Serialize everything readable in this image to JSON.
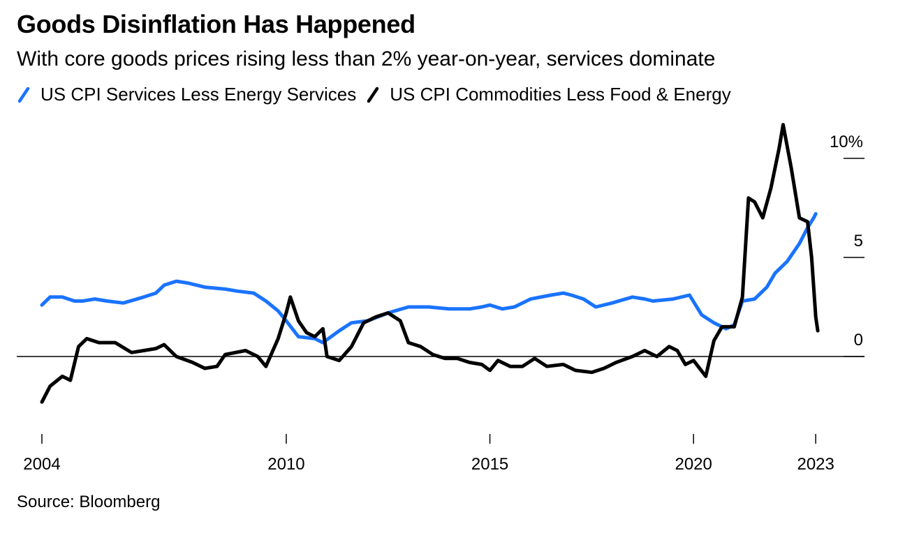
{
  "header": {
    "title": "Goods Disinflation Has Happened",
    "subtitle": "With core goods prices rising less than 2% year-on-year, services dominate"
  },
  "legend": {
    "services_label": "US CPI Services Less Energy Services",
    "goods_label": "US CPI Commodities Less Food & Energy"
  },
  "footer": {
    "source": "Source: Bloomberg"
  },
  "colors": {
    "services": "#1a73ff",
    "goods": "#000000"
  },
  "chart_data": {
    "type": "line",
    "title": "Goods Disinflation Has Happened",
    "subtitle": "With core goods prices rising less than 2% year-on-year, services dominate",
    "xlabel": "",
    "ylabel": "",
    "x_ticks": [
      "2004",
      "2010",
      "2015",
      "2020",
      "2023"
    ],
    "y_ticks": [
      "10%",
      "5",
      "0"
    ],
    "x_range": [
      2004.0,
      2023.1
    ],
    "y_range": [
      -4,
      12.5
    ],
    "y_axis_side": "right",
    "grid": false,
    "legend_position": "top-left",
    "series": [
      {
        "name": "US CPI Services Less Energy Services",
        "color": "#1a73ff",
        "points": [
          [
            2004.0,
            2.6
          ],
          [
            2004.2,
            3.0
          ],
          [
            2004.5,
            3.0
          ],
          [
            2004.8,
            2.8
          ],
          [
            2005.0,
            2.8
          ],
          [
            2005.3,
            2.9
          ],
          [
            2005.6,
            2.8
          ],
          [
            2006.0,
            2.7
          ],
          [
            2006.5,
            3.0
          ],
          [
            2006.8,
            3.2
          ],
          [
            2007.0,
            3.6
          ],
          [
            2007.3,
            3.8
          ],
          [
            2007.6,
            3.7
          ],
          [
            2008.0,
            3.5
          ],
          [
            2008.5,
            3.4
          ],
          [
            2008.8,
            3.3
          ],
          [
            2009.2,
            3.2
          ],
          [
            2009.5,
            2.8
          ],
          [
            2009.8,
            2.3
          ],
          [
            2010.0,
            1.8
          ],
          [
            2010.3,
            1.0
          ],
          [
            2010.7,
            0.9
          ],
          [
            2010.9,
            0.7
          ],
          [
            2011.3,
            1.3
          ],
          [
            2011.6,
            1.7
          ],
          [
            2012.0,
            1.8
          ],
          [
            2012.5,
            2.2
          ],
          [
            2013.0,
            2.5
          ],
          [
            2013.5,
            2.5
          ],
          [
            2014.0,
            2.4
          ],
          [
            2014.5,
            2.4
          ],
          [
            2014.8,
            2.5
          ],
          [
            2015.0,
            2.6
          ],
          [
            2015.3,
            2.4
          ],
          [
            2015.6,
            2.5
          ],
          [
            2016.0,
            2.9
          ],
          [
            2016.5,
            3.1
          ],
          [
            2016.8,
            3.2
          ],
          [
            2017.0,
            3.1
          ],
          [
            2017.3,
            2.9
          ],
          [
            2017.6,
            2.5
          ],
          [
            2018.0,
            2.7
          ],
          [
            2018.5,
            3.0
          ],
          [
            2018.8,
            2.9
          ],
          [
            2019.0,
            2.8
          ],
          [
            2019.5,
            2.9
          ],
          [
            2019.9,
            3.1
          ],
          [
            2020.2,
            2.1
          ],
          [
            2020.5,
            1.7
          ],
          [
            2020.8,
            1.4
          ],
          [
            2021.0,
            1.6
          ],
          [
            2021.2,
            2.8
          ],
          [
            2021.5,
            2.9
          ],
          [
            2021.8,
            3.5
          ],
          [
            2022.0,
            4.2
          ],
          [
            2022.3,
            4.8
          ],
          [
            2022.6,
            5.7
          ],
          [
            2022.8,
            6.5
          ],
          [
            2022.95,
            7.0
          ],
          [
            2023.0,
            7.2
          ]
        ]
      },
      {
        "name": "US CPI Commodities Less Food & Energy",
        "color": "#000000",
        "points": [
          [
            2004.0,
            -2.3
          ],
          [
            2004.2,
            -1.5
          ],
          [
            2004.5,
            -1.0
          ],
          [
            2004.7,
            -1.2
          ],
          [
            2004.9,
            0.5
          ],
          [
            2005.1,
            0.9
          ],
          [
            2005.4,
            0.7
          ],
          [
            2005.8,
            0.7
          ],
          [
            2006.2,
            0.2
          ],
          [
            2006.5,
            0.3
          ],
          [
            2006.8,
            0.4
          ],
          [
            2007.0,
            0.6
          ],
          [
            2007.3,
            0.0
          ],
          [
            2007.7,
            -0.3
          ],
          [
            2008.0,
            -0.6
          ],
          [
            2008.3,
            -0.5
          ],
          [
            2008.5,
            0.1
          ],
          [
            2009.0,
            0.3
          ],
          [
            2009.3,
            0.0
          ],
          [
            2009.5,
            -0.5
          ],
          [
            2009.8,
            0.9
          ],
          [
            2010.0,
            2.2
          ],
          [
            2010.1,
            3.0
          ],
          [
            2010.3,
            1.8
          ],
          [
            2010.5,
            1.2
          ],
          [
            2010.7,
            1.0
          ],
          [
            2010.9,
            1.4
          ],
          [
            2011.0,
            0.0
          ],
          [
            2011.3,
            -0.2
          ],
          [
            2011.6,
            0.5
          ],
          [
            2011.9,
            1.7
          ],
          [
            2012.2,
            2.0
          ],
          [
            2012.5,
            2.2
          ],
          [
            2012.8,
            1.8
          ],
          [
            2013.0,
            0.7
          ],
          [
            2013.3,
            0.5
          ],
          [
            2013.6,
            0.1
          ],
          [
            2013.9,
            -0.1
          ],
          [
            2014.2,
            -0.1
          ],
          [
            2014.5,
            -0.3
          ],
          [
            2014.8,
            -0.4
          ],
          [
            2015.0,
            -0.7
          ],
          [
            2015.2,
            -0.2
          ],
          [
            2015.5,
            -0.5
          ],
          [
            2015.8,
            -0.5
          ],
          [
            2016.1,
            -0.1
          ],
          [
            2016.4,
            -0.5
          ],
          [
            2016.8,
            -0.4
          ],
          [
            2017.1,
            -0.7
          ],
          [
            2017.5,
            -0.8
          ],
          [
            2017.8,
            -0.6
          ],
          [
            2018.1,
            -0.3
          ],
          [
            2018.5,
            0.0
          ],
          [
            2018.8,
            0.3
          ],
          [
            2019.1,
            0.0
          ],
          [
            2019.4,
            0.5
          ],
          [
            2019.6,
            0.3
          ],
          [
            2019.8,
            -0.4
          ],
          [
            2020.0,
            -0.2
          ],
          [
            2020.3,
            -1.0
          ],
          [
            2020.5,
            0.8
          ],
          [
            2020.7,
            1.5
          ],
          [
            2021.0,
            1.5
          ],
          [
            2021.2,
            3.0
          ],
          [
            2021.35,
            8.0
          ],
          [
            2021.5,
            7.8
          ],
          [
            2021.7,
            7.0
          ],
          [
            2021.9,
            8.5
          ],
          [
            2022.1,
            10.5
          ],
          [
            2022.2,
            11.7
          ],
          [
            2022.4,
            9.5
          ],
          [
            2022.6,
            7.0
          ],
          [
            2022.8,
            6.8
          ],
          [
            2022.9,
            5.0
          ],
          [
            2023.0,
            2.0
          ],
          [
            2023.05,
            1.3
          ]
        ]
      }
    ]
  }
}
